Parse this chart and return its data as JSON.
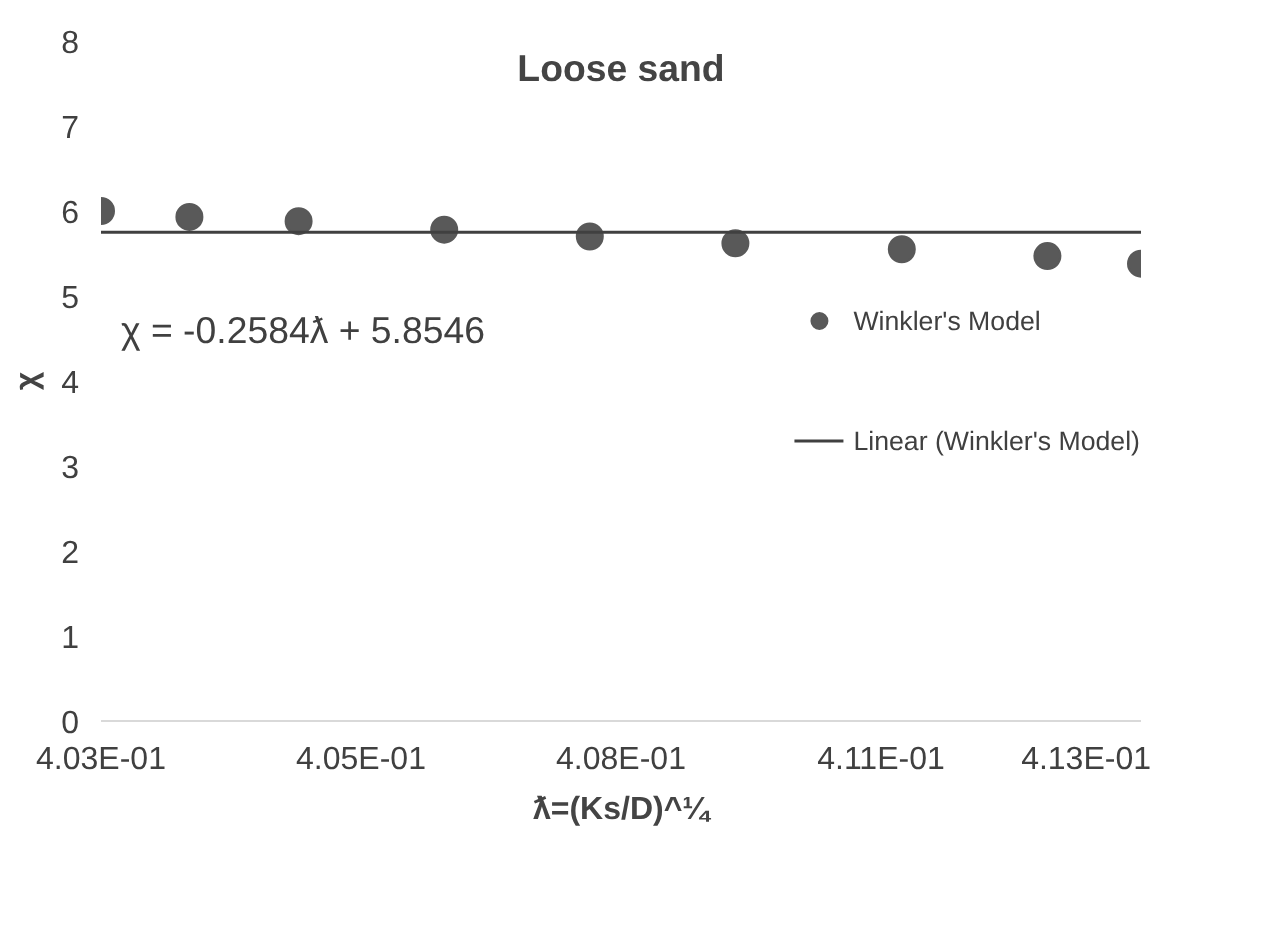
{
  "chart_data": {
    "type": "scatter",
    "title": "Loose sand",
    "xlabel": "ƛ=(Ks/D)^¼",
    "ylabel": "χ",
    "annotations": [
      "χ = -0.2584ƛ + 5.8546"
    ],
    "series": [
      {
        "name": "Winkler's Model",
        "color": "#595959",
        "marker": "circle",
        "x": [
          0.403,
          0.40385,
          0.4049,
          0.4063,
          0.4077,
          0.4091,
          0.4107,
          0.4121,
          0.413
        ],
        "values": [
          6.0,
          5.93,
          5.88,
          5.78,
          5.7,
          5.62,
          5.55,
          5.47,
          5.38
        ]
      },
      {
        "name": "Linear (Winkler's Model)",
        "type": "line",
        "color": "#404040",
        "line_style": "solid",
        "x": [
          0.403,
          0.413
        ],
        "values": [
          5.75,
          5.75
        ]
      }
    ],
    "xlim": [
      0.403,
      0.413
    ],
    "xticks": [
      {
        "value": 0.403,
        "label": "4.03E-01"
      },
      {
        "value": 0.4055,
        "label": "4.05E-01"
      },
      {
        "value": 0.408,
        "label": "4.08E-01"
      },
      {
        "value": 0.4105,
        "label": "4.11E-01"
      },
      {
        "value": 0.413,
        "label": "4.13E-01"
      }
    ],
    "ylim": [
      0,
      8
    ],
    "yticks": [
      0,
      1,
      2,
      3,
      4,
      5,
      6,
      7,
      8
    ],
    "grid": false,
    "legend": "right"
  }
}
